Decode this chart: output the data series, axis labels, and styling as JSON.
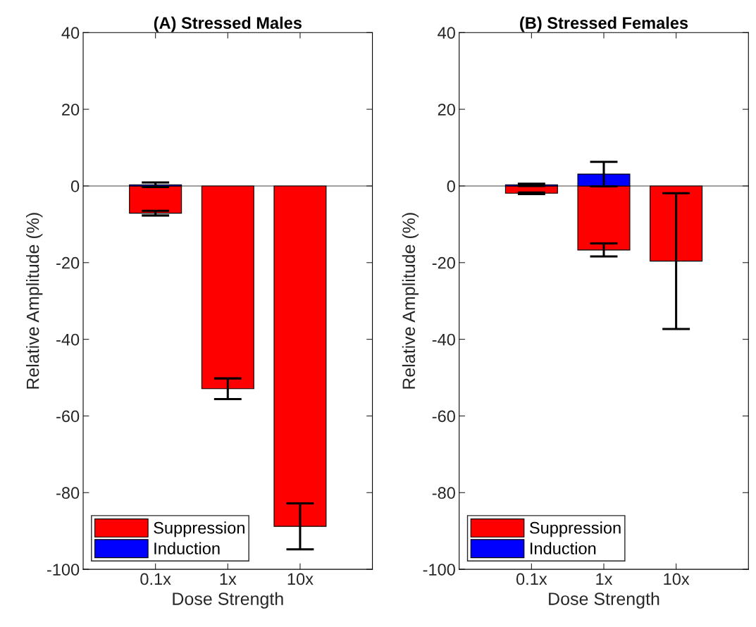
{
  "chart_data": [
    {
      "type": "bar",
      "title": "(A) Stressed Males",
      "xlabel": "Dose Strength",
      "ylabel": "Relative Amplitude (%)",
      "categories": [
        "0.1x",
        "1x",
        "10x"
      ],
      "series": [
        {
          "name": "Suppression",
          "color": "#ff0000",
          "values": [
            -7.1,
            -52.9,
            -88.8
          ],
          "errors": [
            0.6,
            2.7,
            6.0
          ]
        },
        {
          "name": "Induction",
          "color": "#0000ff",
          "values": [
            0.3,
            null,
            null
          ],
          "errors": [
            0.6,
            null,
            null
          ]
        }
      ],
      "ylim": [
        -100,
        40
      ],
      "yticks": [
        -100,
        -80,
        -60,
        -40,
        -20,
        0,
        20,
        40
      ],
      "ref_lines": [
        {
          "axis": "y",
          "value": 0,
          "color": "#808080"
        }
      ],
      "legend": "bottom left",
      "grid": false
    },
    {
      "type": "bar",
      "title": "(B) Stressed Females",
      "xlabel": "Dose Strength",
      "ylabel": "Relative Amplitude (%)",
      "categories": [
        "0.1x",
        "1x",
        "10x"
      ],
      "series": [
        {
          "name": "Suppression",
          "color": "#ff0000",
          "values": [
            -1.9,
            -16.7,
            -19.6
          ],
          "errors": [
            0.2,
            1.7,
            17.7
          ]
        },
        {
          "name": "Induction",
          "color": "#0000ff",
          "values": [
            0.3,
            3.1,
            null
          ],
          "errors": [
            0.3,
            3.2,
            null
          ]
        }
      ],
      "ylim": [
        -100,
        40
      ],
      "yticks": [
        -100,
        -80,
        -60,
        -40,
        -20,
        0,
        20,
        40
      ],
      "ref_lines": [
        {
          "axis": "y",
          "value": 0,
          "color": "#808080"
        }
      ],
      "legend": "bottom left",
      "grid": false
    }
  ]
}
